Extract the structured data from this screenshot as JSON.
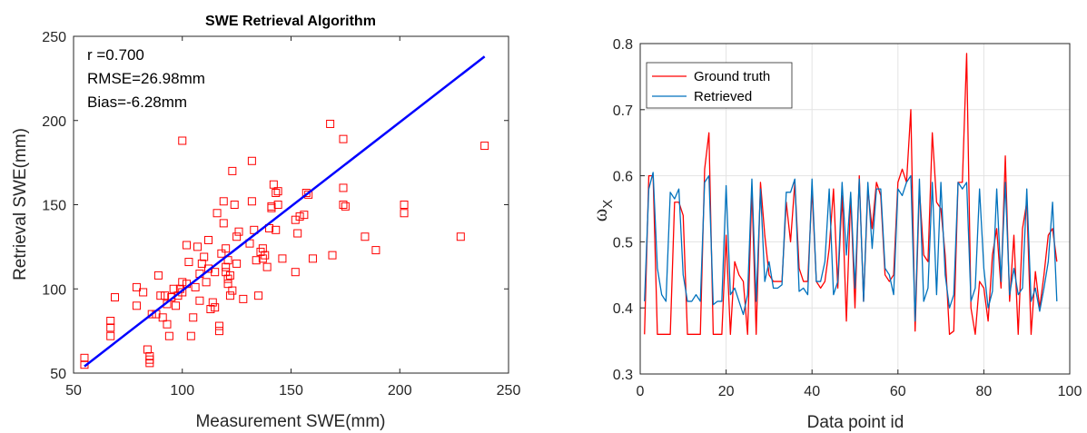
{
  "chart_data": [
    {
      "type": "scatter",
      "title": "SWE Retrieval Algorithm",
      "xlabel": "Measurement SWE(mm)",
      "ylabel": "Retrieval SWE(mm)",
      "xlim": [
        50,
        250
      ],
      "ylim": [
        50,
        250
      ],
      "xticks": [
        50,
        100,
        150,
        200,
        250
      ],
      "yticks": [
        50,
        100,
        150,
        200,
        250
      ],
      "grid": false,
      "annotations": [
        "r =0.700",
        "RMSE=26.98mm",
        "Bias=-6.28mm"
      ],
      "colors": {
        "points": "#ff0000",
        "fit": "#0000ff"
      },
      "fit_line": {
        "x": [
          55,
          239
        ],
        "y": [
          54,
          238
        ]
      },
      "points": [
        [
          55,
          55
        ],
        [
          55,
          59
        ],
        [
          67,
          72
        ],
        [
          67,
          77
        ],
        [
          67,
          81
        ],
        [
          69,
          95
        ],
        [
          79,
          90
        ],
        [
          79,
          101
        ],
        [
          82,
          98
        ],
        [
          84,
          64
        ],
        [
          85,
          60
        ],
        [
          85,
          58
        ],
        [
          85,
          56
        ],
        [
          86,
          85
        ],
        [
          88,
          85
        ],
        [
          89,
          108
        ],
        [
          90,
          96
        ],
        [
          91,
          83
        ],
        [
          92,
          96
        ],
        [
          93,
          79
        ],
        [
          93,
          91
        ],
        [
          94,
          72
        ],
        [
          95,
          95
        ],
        [
          96,
          100
        ],
        [
          97,
          90
        ],
        [
          98,
          96
        ],
        [
          99,
          100
        ],
        [
          100,
          98
        ],
        [
          100,
          104
        ],
        [
          100,
          188
        ],
        [
          102,
          103
        ],
        [
          102,
          126
        ],
        [
          103,
          116
        ],
        [
          104,
          72
        ],
        [
          105,
          83
        ],
        [
          106,
          101
        ],
        [
          107,
          125
        ],
        [
          108,
          93
        ],
        [
          108,
          109
        ],
        [
          109,
          115
        ],
        [
          110,
          119
        ],
        [
          111,
          104
        ],
        [
          112,
          129
        ],
        [
          112,
          112
        ],
        [
          113,
          88
        ],
        [
          114,
          92
        ],
        [
          115,
          110
        ],
        [
          115,
          89
        ],
        [
          116,
          145
        ],
        [
          117,
          78
        ],
        [
          117,
          75
        ],
        [
          118,
          121
        ],
        [
          119,
          139
        ],
        [
          119,
          152
        ],
        [
          120,
          124
        ],
        [
          120,
          113
        ],
        [
          120,
          110
        ],
        [
          121,
          106
        ],
        [
          121,
          103
        ],
        [
          121,
          117
        ],
        [
          122,
          108
        ],
        [
          122,
          96
        ],
        [
          123,
          170
        ],
        [
          123,
          99
        ],
        [
          124,
          150
        ],
        [
          125,
          115
        ],
        [
          125,
          131
        ],
        [
          126,
          134
        ],
        [
          128,
          94
        ],
        [
          131,
          127
        ],
        [
          132,
          176
        ],
        [
          132,
          152
        ],
        [
          133,
          135
        ],
        [
          134,
          117
        ],
        [
          135,
          96
        ],
        [
          136,
          122
        ],
        [
          137,
          124
        ],
        [
          137,
          118
        ],
        [
          138,
          120
        ],
        [
          139,
          113
        ],
        [
          140,
          136
        ],
        [
          141,
          148
        ],
        [
          141,
          149
        ],
        [
          142,
          162
        ],
        [
          143,
          135
        ],
        [
          143,
          157
        ],
        [
          144,
          150
        ],
        [
          144,
          158
        ],
        [
          146,
          118
        ],
        [
          152,
          110
        ],
        [
          152,
          141
        ],
        [
          153,
          133
        ],
        [
          154,
          143
        ],
        [
          156,
          144
        ],
        [
          157,
          157
        ],
        [
          158,
          156
        ],
        [
          160,
          118
        ],
        [
          168,
          198
        ],
        [
          169,
          120
        ],
        [
          174,
          189
        ],
        [
          174,
          160
        ],
        [
          174,
          150
        ],
        [
          175,
          149
        ],
        [
          184,
          131
        ],
        [
          189,
          123
        ],
        [
          202,
          150
        ],
        [
          202,
          145
        ],
        [
          228,
          131
        ],
        [
          239,
          185
        ]
      ]
    },
    {
      "type": "line",
      "xlabel": "Data point id",
      "ylabel": "ω_X",
      "xlim": [
        0,
        100
      ],
      "ylim": [
        0.3,
        0.8
      ],
      "xticks": [
        0,
        20,
        40,
        60,
        80,
        100
      ],
      "yticks": [
        0.3,
        0.4,
        0.5,
        0.6,
        0.7,
        0.8
      ],
      "grid": true,
      "legend_position": "top-left",
      "x": [
        1,
        2,
        3,
        4,
        5,
        6,
        7,
        8,
        9,
        10,
        11,
        12,
        13,
        14,
        15,
        16,
        17,
        18,
        19,
        20,
        21,
        22,
        23,
        24,
        25,
        26,
        27,
        28,
        29,
        30,
        31,
        32,
        33,
        34,
        35,
        36,
        37,
        38,
        39,
        40,
        41,
        42,
        43,
        44,
        45,
        46,
        47,
        48,
        49,
        50,
        51,
        52,
        53,
        54,
        55,
        56,
        57,
        58,
        59,
        60,
        61,
        62,
        63,
        64,
        65,
        66,
        67,
        68,
        69,
        70,
        71,
        72,
        73,
        74,
        75,
        76,
        77,
        78,
        79,
        80,
        81,
        82,
        83,
        84,
        85,
        86,
        87,
        88,
        89,
        90,
        91,
        92,
        93,
        94,
        95,
        96,
        97
      ],
      "series": [
        {
          "name": "Ground truth",
          "color": "#ff0000",
          "values": [
            0.36,
            0.6,
            0.6,
            0.36,
            0.36,
            0.36,
            0.36,
            0.56,
            0.56,
            0.54,
            0.36,
            0.36,
            0.36,
            0.36,
            0.61,
            0.665,
            0.36,
            0.36,
            0.36,
            0.51,
            0.36,
            0.47,
            0.45,
            0.44,
            0.36,
            0.58,
            0.36,
            0.59,
            0.51,
            0.45,
            0.44,
            0.44,
            0.44,
            0.56,
            0.5,
            0.59,
            0.46,
            0.44,
            0.44,
            0.58,
            0.44,
            0.43,
            0.44,
            0.49,
            0.58,
            0.43,
            0.57,
            0.38,
            0.57,
            0.4,
            0.6,
            0.41,
            0.58,
            0.52,
            0.59,
            0.57,
            0.45,
            0.44,
            0.45,
            0.59,
            0.61,
            0.59,
            0.7,
            0.365,
            0.58,
            0.48,
            0.47,
            0.665,
            0.56,
            0.55,
            0.48,
            0.36,
            0.365,
            0.59,
            0.59,
            0.785,
            0.4,
            0.36,
            0.44,
            0.43,
            0.38,
            0.48,
            0.52,
            0.43,
            0.63,
            0.41,
            0.51,
            0.36,
            0.52,
            0.56,
            0.36,
            0.455,
            0.4,
            0.45,
            0.51,
            0.52,
            0.47
          ]
        },
        {
          "name": "Retrieved",
          "color": "#0072bd",
          "values": [
            0.41,
            0.58,
            0.605,
            0.46,
            0.42,
            0.41,
            0.575,
            0.565,
            0.58,
            0.45,
            0.41,
            0.41,
            0.42,
            0.41,
            0.59,
            0.6,
            0.405,
            0.41,
            0.41,
            0.585,
            0.42,
            0.43,
            0.41,
            0.39,
            0.42,
            0.595,
            0.41,
            0.58,
            0.44,
            0.47,
            0.43,
            0.43,
            0.435,
            0.575,
            0.575,
            0.595,
            0.425,
            0.43,
            0.42,
            0.595,
            0.44,
            0.44,
            0.47,
            0.58,
            0.42,
            0.44,
            0.59,
            0.48,
            0.575,
            0.43,
            0.595,
            0.41,
            0.59,
            0.49,
            0.58,
            0.58,
            0.46,
            0.45,
            0.42,
            0.58,
            0.57,
            0.59,
            0.6,
            0.38,
            0.595,
            0.41,
            0.43,
            0.59,
            0.42,
            0.59,
            0.45,
            0.4,
            0.42,
            0.59,
            0.58,
            0.59,
            0.41,
            0.43,
            0.58,
            0.46,
            0.4,
            0.425,
            0.58,
            0.44,
            0.59,
            0.42,
            0.46,
            0.42,
            0.43,
            0.58,
            0.41,
            0.43,
            0.395,
            0.43,
            0.47,
            0.56,
            0.41
          ]
        }
      ]
    }
  ]
}
